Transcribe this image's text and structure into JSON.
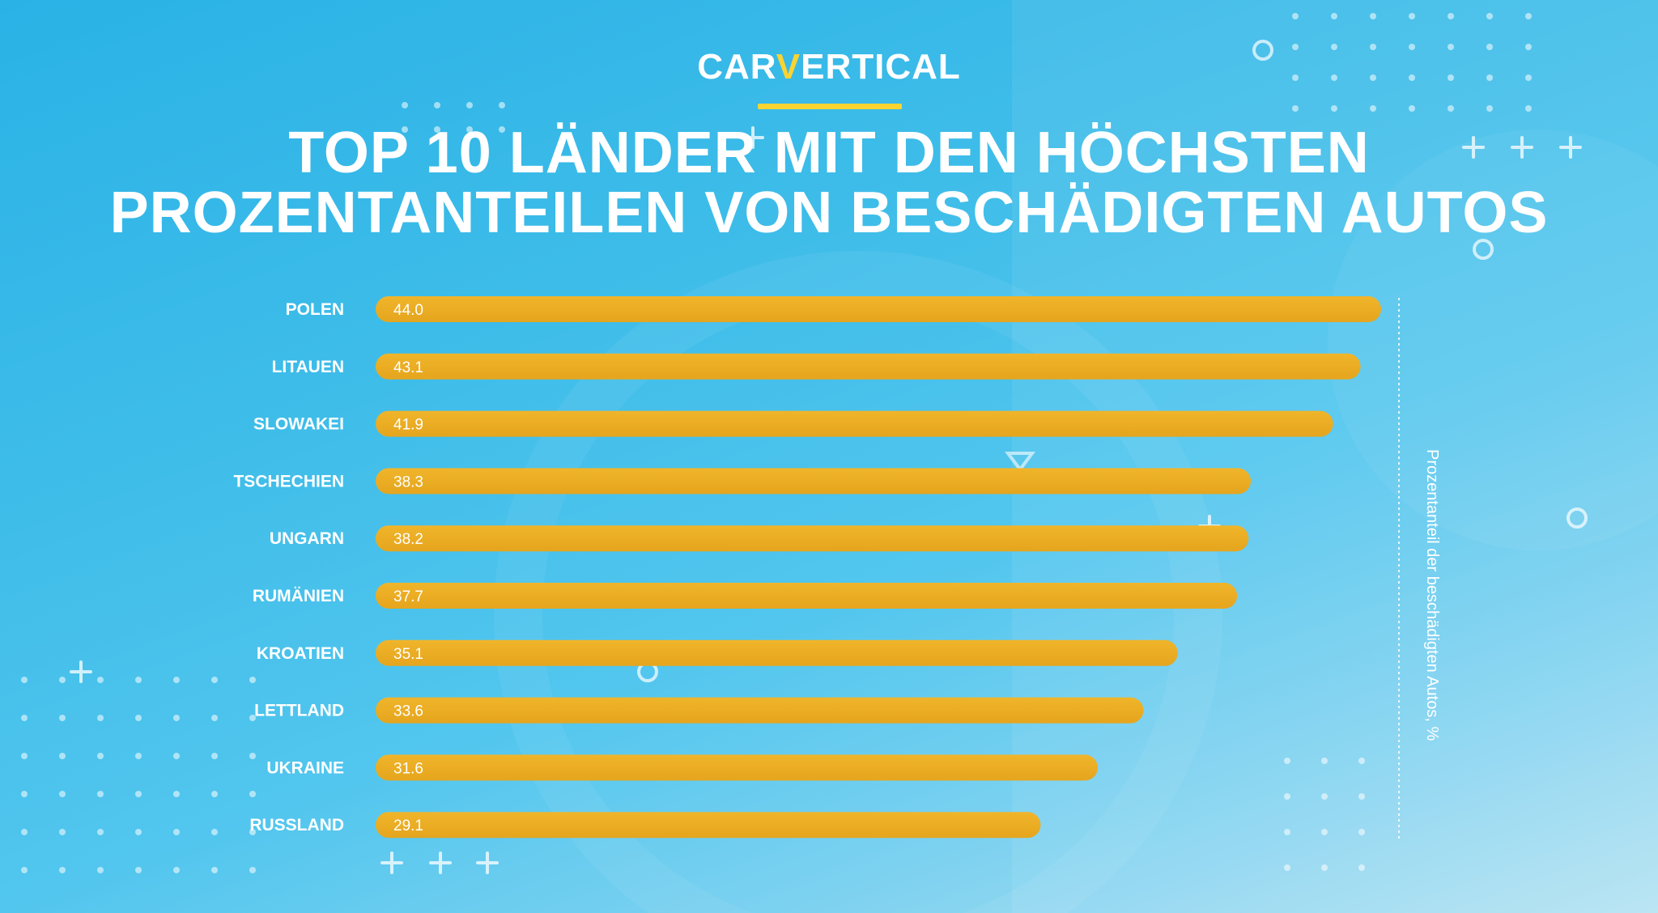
{
  "logo": {
    "part1": "CAR",
    "accent": "V",
    "part2": "ERTICAL"
  },
  "title_lines": [
    "TOP 10 LÄNDER MIT DEN HÖCHSTEN",
    "PROZENTANTEILEN VON BESCHÄDIGTEN AUTOS"
  ],
  "colors": {
    "bar_top": "#f0b52a",
    "bar_bottom": "#e5a51e",
    "accent": "#fbd431"
  },
  "chart_data": {
    "type": "bar",
    "orientation": "horizontal",
    "title": "TOP 10 LÄNDER MIT DEN HÖCHSTEN PROZENTANTEILEN VON BESCHÄDIGTEN AUTOS",
    "categories": [
      "POLEN",
      "LITAUEN",
      "SLOWAKEI",
      "TSCHECHIEN",
      "UNGARN",
      "RUMÄNIEN",
      "KROATIEN",
      "LETTLAND",
      "UKRAINE",
      "RUSSLAND"
    ],
    "values": [
      44.0,
      43.1,
      41.9,
      38.3,
      38.2,
      37.7,
      35.1,
      33.6,
      31.6,
      29.1
    ],
    "value_labels": [
      "44.0",
      "43.1",
      "41.9",
      "38.3",
      "38.2",
      "37.7",
      "35.1",
      "33.6",
      "31.6",
      "29.1"
    ],
    "xlabel": "Prozentanteil der beschädigten Autos, %",
    "ylabel": "",
    "xlim": [
      0,
      44
    ],
    "grid": false,
    "legend": "none"
  }
}
